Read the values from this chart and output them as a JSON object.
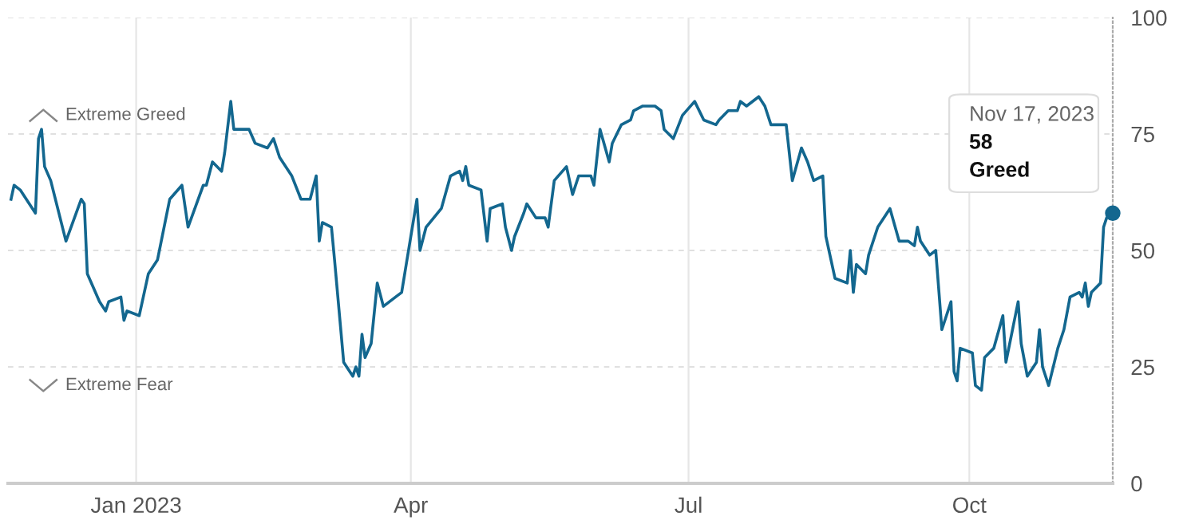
{
  "chart_data": {
    "type": "line",
    "x": [
      "2022-11-21",
      "2022-11-22",
      "2022-11-24",
      "2022-11-29",
      "2022-11-30",
      "2022-12-01",
      "2022-12-02",
      "2022-12-04",
      "2022-12-09",
      "2022-12-14",
      "2022-12-15",
      "2022-12-16",
      "2022-12-20",
      "2022-12-22",
      "2022-12-23",
      "2022-12-27",
      "2022-12-28",
      "2022-12-29",
      "2023-01-02",
      "2023-01-05",
      "2023-01-08",
      "2023-01-12",
      "2023-01-16",
      "2023-01-18",
      "2023-01-23",
      "2023-01-24",
      "2023-01-26",
      "2023-01-29",
      "2023-01-30",
      "2023-02-01",
      "2023-02-02",
      "2023-02-07",
      "2023-02-09",
      "2023-02-13",
      "2023-02-15",
      "2023-02-17",
      "2023-02-21",
      "2023-02-24",
      "2023-02-27",
      "2023-03-01",
      "2023-03-02",
      "2023-03-03",
      "2023-03-06",
      "2023-03-07",
      "2023-03-10",
      "2023-03-13",
      "2023-03-14",
      "2023-03-15",
      "2023-03-16",
      "2023-03-17",
      "2023-03-19",
      "2023-03-21",
      "2023-03-23",
      "2023-03-27",
      "2023-03-29",
      "2023-04-03",
      "2023-04-04",
      "2023-04-06",
      "2023-04-11",
      "2023-04-14",
      "2023-04-17",
      "2023-04-18",
      "2023-04-19",
      "2023-04-20",
      "2023-04-24",
      "2023-04-26",
      "2023-04-27",
      "2023-05-01",
      "2023-05-02",
      "2023-05-04",
      "2023-05-05",
      "2023-05-08",
      "2023-05-09",
      "2023-05-12",
      "2023-05-15",
      "2023-05-16",
      "2023-05-18",
      "2023-05-22",
      "2023-05-24",
      "2023-05-26",
      "2023-05-30",
      "2023-05-31",
      "2023-06-02",
      "2023-06-05",
      "2023-06-06",
      "2023-06-09",
      "2023-06-12",
      "2023-06-13",
      "2023-06-16",
      "2023-06-20",
      "2023-06-22",
      "2023-06-23",
      "2023-06-26",
      "2023-06-29",
      "2023-07-03",
      "2023-07-06",
      "2023-07-10",
      "2023-07-11",
      "2023-07-14",
      "2023-07-17",
      "2023-07-18",
      "2023-07-20",
      "2023-07-24",
      "2023-07-26",
      "2023-07-28",
      "2023-07-30",
      "2023-08-02",
      "2023-08-04",
      "2023-08-07",
      "2023-08-09",
      "2023-08-11",
      "2023-08-14",
      "2023-08-15",
      "2023-08-18",
      "2023-08-22",
      "2023-08-23",
      "2023-08-24",
      "2023-08-25",
      "2023-08-28",
      "2023-08-29",
      "2023-09-01",
      "2023-09-05",
      "2023-09-08",
      "2023-09-11",
      "2023-09-13",
      "2023-09-14",
      "2023-09-15",
      "2023-09-18",
      "2023-09-20",
      "2023-09-22",
      "2023-09-25",
      "2023-09-26",
      "2023-09-27",
      "2023-09-28",
      "2023-10-02",
      "2023-10-03",
      "2023-10-05",
      "2023-10-06",
      "2023-10-09",
      "2023-10-12",
      "2023-10-13",
      "2023-10-17",
      "2023-10-18",
      "2023-10-20",
      "2023-10-23",
      "2023-10-24",
      "2023-10-25",
      "2023-10-27",
      "2023-10-30",
      "2023-11-01",
      "2023-11-03",
      "2023-11-06",
      "2023-11-07",
      "2023-11-08",
      "2023-11-09",
      "2023-11-10",
      "2023-11-13",
      "2023-11-14",
      "2023-11-15",
      "2023-11-17"
    ],
    "series": [
      {
        "color": "#13678f",
        "values": [
          61,
          64,
          63,
          58,
          74,
          76,
          68,
          65,
          52,
          61,
          60,
          45,
          39,
          37,
          39,
          40,
          35,
          37,
          36,
          45,
          48,
          61,
          64,
          55,
          64,
          64,
          69,
          67,
          71,
          82,
          76,
          76,
          73,
          72,
          74,
          70,
          66,
          61,
          61,
          66,
          52,
          56,
          55,
          48,
          26,
          23,
          25,
          23,
          32,
          27,
          30,
          43,
          38,
          40,
          41,
          61,
          50,
          55,
          59,
          66,
          67,
          65,
          68,
          64,
          63,
          52,
          59,
          60,
          55,
          50,
          53,
          58,
          60,
          57,
          57,
          55,
          65,
          68,
          62,
          66,
          66,
          64,
          76,
          69,
          73,
          77,
          78,
          80,
          81,
          81,
          80,
          76,
          74,
          79,
          82,
          78,
          77,
          78,
          80,
          80,
          82,
          81,
          83,
          81,
          77,
          77,
          77,
          65,
          72,
          69,
          65,
          66,
          53,
          44,
          43,
          50,
          41,
          47,
          45,
          49,
          55,
          59,
          52,
          52,
          51,
          55,
          52,
          49,
          50,
          33,
          39,
          24,
          22,
          29,
          28,
          21,
          20,
          27,
          29,
          36,
          26,
          39,
          30,
          23,
          26,
          33,
          25,
          21,
          29,
          33,
          40,
          41,
          40,
          43,
          38,
          41,
          43,
          55,
          57,
          58
        ]
      }
    ],
    "xlim": [
      "2022-11-20",
      "2023-11-17"
    ],
    "xticks": [
      {
        "value": "2023-01-01",
        "label": "Jan 2023"
      },
      {
        "value": "2023-04-01",
        "label": "Apr"
      },
      {
        "value": "2023-07-01",
        "label": "Jul"
      },
      {
        "value": "2023-10-01",
        "label": "Oct"
      }
    ],
    "ylim": [
      0,
      100
    ],
    "yticks": [
      0,
      25,
      50,
      75,
      100
    ],
    "grid": true,
    "marker": "none",
    "line_style": "solid",
    "annotations": [
      "Extreme Greed",
      "Extreme Fear",
      "Nov 17, 2023",
      "58",
      "Greed"
    ]
  }
}
